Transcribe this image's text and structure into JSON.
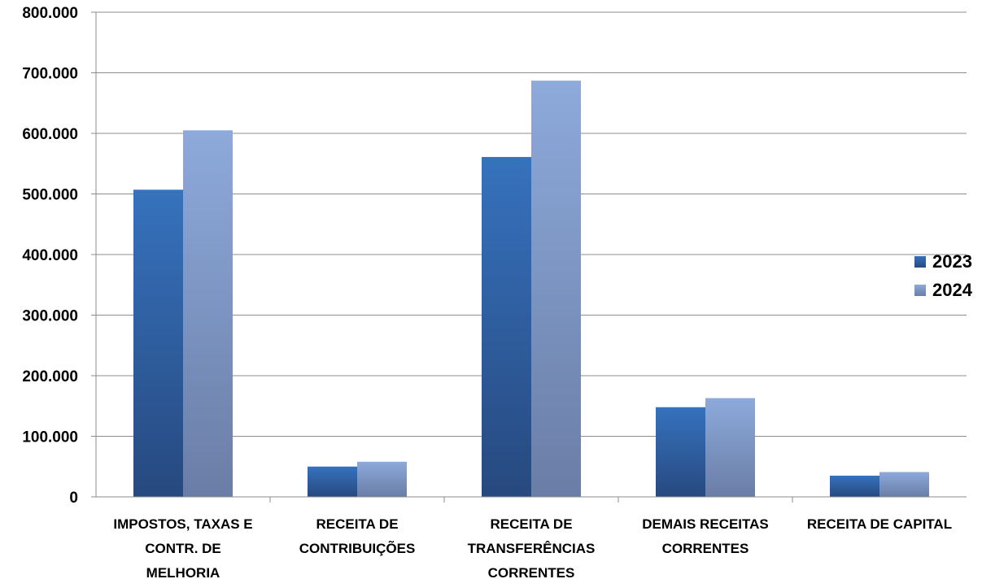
{
  "chart_data": {
    "type": "bar",
    "title": "",
    "xlabel": "",
    "ylabel": "",
    "ylim": [
      0,
      800000
    ],
    "yticks": [
      "0",
      "100.000",
      "200.000",
      "300.000",
      "400.000",
      "500.000",
      "600.000",
      "700.000",
      "800.000"
    ],
    "categories": [
      [
        "IMPOSTOS, TAXAS E",
        "CONTR. DE",
        "MELHORIA"
      ],
      [
        "RECEITA DE",
        "CONTRIBUIÇÕES"
      ],
      [
        "RECEITA DE",
        "TRANSFERÊNCIAS",
        "CORRENTES"
      ],
      [
        "DEMAIS RECEITAS",
        "CORRENTES"
      ],
      [
        "RECEITA DE CAPITAL"
      ]
    ],
    "series": [
      {
        "name": "2023",
        "values": [
          507000,
          50000,
          561000,
          148000,
          35000
        ],
        "color": "#2f5e9e"
      },
      {
        "name": "2024",
        "values": [
          605000,
          58000,
          687000,
          163000,
          41000
        ],
        "color": "#8aa6d6"
      }
    ],
    "grid": true,
    "legend_position": "right"
  }
}
